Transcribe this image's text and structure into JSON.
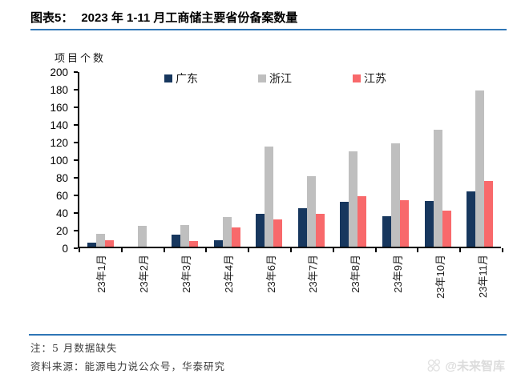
{
  "header": {
    "figure_label": "图表5：",
    "title": "2023 年 1-11 月工商储主要省份备案数量"
  },
  "chart_data": {
    "type": "bar",
    "title": "2023 年 1-11 月工商储主要省份备案数量",
    "ylabel": "项目个数",
    "xlabel": "",
    "categories": [
      "23年1月",
      "23年2月",
      "23年3月",
      "23年4月",
      "23年6月",
      "23年7月",
      "23年8月",
      "23年9月",
      "23年10月",
      "23年11月"
    ],
    "series": [
      {
        "name": "广东",
        "color": "#17375E",
        "values": [
          5,
          0,
          14,
          7,
          37,
          44,
          51,
          35,
          52,
          63
        ]
      },
      {
        "name": "浙江",
        "color": "#BFBFBF",
        "values": [
          15,
          24,
          25,
          34,
          114,
          80,
          108,
          117,
          133,
          177
        ]
      },
      {
        "name": "江苏",
        "color": "#F8696B",
        "values": [
          7,
          0,
          6,
          22,
          31,
          37,
          57,
          53,
          41,
          75
        ]
      }
    ],
    "ylim": [
      0,
      200
    ],
    "ytick_step": 20,
    "legend_position": "top-inside",
    "grid": false
  },
  "footer": {
    "note": "注：5 月数据缺失",
    "source": "资料来源：能源电力说公众号，华泰研究",
    "watermark": "@未来智库"
  },
  "colors": {
    "rule_blue": "#2E75B6",
    "axis_black": "#000000",
    "watermark_gray": "#dcdcdc"
  }
}
